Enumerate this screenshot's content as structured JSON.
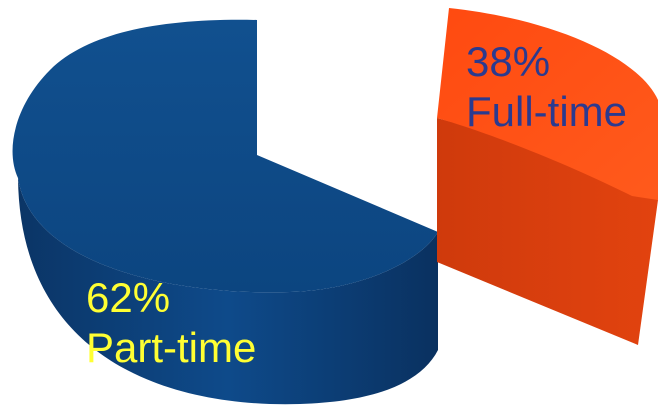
{
  "chart_data": {
    "type": "pie",
    "style": "3d-exploded",
    "slices": [
      {
        "category": "Part-time",
        "percent_label": "62%",
        "value": 62,
        "color": "#0E4A8A",
        "label_color": "#FFFF33"
      },
      {
        "category": "Full-time",
        "percent_label": "38%",
        "value": 38,
        "color": "#FF5A1C",
        "label_color": "#2B3A8F"
      }
    ],
    "legend": "none"
  }
}
